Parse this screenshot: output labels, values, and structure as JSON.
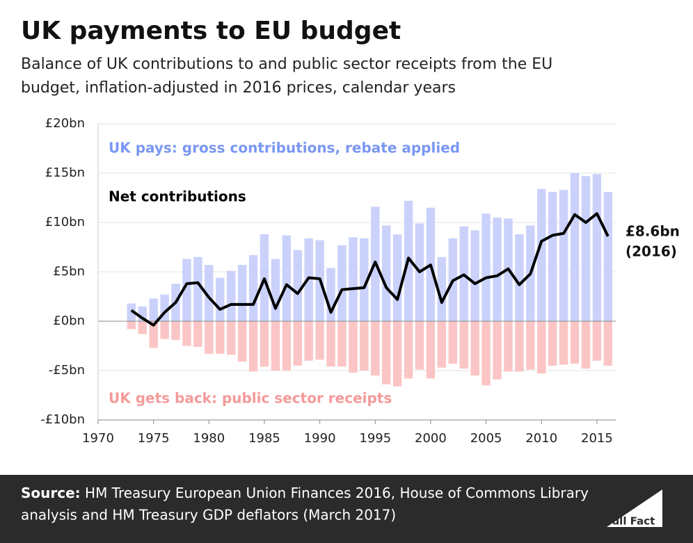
{
  "chart_data": {
    "type": "bar-line",
    "title": "UK payments to EU budget",
    "subtitle": [
      "Balance of UK contributions to and public sector receipts from the EU",
      "budget, inflation-adjusted in 2016 prices, calendar years"
    ],
    "x": [
      1973,
      1974,
      1975,
      1976,
      1977,
      1978,
      1979,
      1980,
      1981,
      1982,
      1983,
      1984,
      1985,
      1986,
      1987,
      1988,
      1989,
      1990,
      1991,
      1992,
      1993,
      1994,
      1995,
      1996,
      1997,
      1998,
      1999,
      2000,
      2001,
      2002,
      2003,
      2004,
      2005,
      2006,
      2007,
      2008,
      2009,
      2010,
      2011,
      2012,
      2013,
      2014,
      2015,
      2016
    ],
    "series": [
      {
        "name": "UK pays: gross contributions, rebate applied",
        "type": "bar",
        "color": "#cad2fb",
        "label_color": "#7a97f2",
        "values": [
          1.8,
          1.5,
          2.3,
          2.7,
          3.8,
          6.3,
          6.5,
          5.7,
          4.4,
          5.1,
          5.7,
          6.7,
          8.8,
          6.3,
          8.7,
          7.2,
          8.4,
          8.2,
          5.4,
          7.7,
          8.5,
          8.4,
          11.6,
          9.7,
          8.8,
          12.2,
          9.9,
          11.5,
          6.5,
          8.4,
          9.6,
          9.2,
          10.9,
          10.5,
          10.4,
          8.8,
          9.7,
          13.4,
          13.1,
          13.3,
          15.0,
          14.7,
          14.9,
          13.1
        ]
      },
      {
        "name": "UK gets back: public sector receipts",
        "type": "bar",
        "color": "#fbc5c5",
        "label_color": "#f49a9a",
        "values": [
          -0.8,
          -1.3,
          -2.7,
          -1.8,
          -1.9,
          -2.5,
          -2.6,
          -3.3,
          -3.3,
          -3.4,
          -4.1,
          -5.1,
          -4.6,
          -5.0,
          -5.0,
          -4.5,
          -4.0,
          -3.9,
          -4.6,
          -4.6,
          -5.2,
          -5.0,
          -5.5,
          -6.4,
          -6.6,
          -5.8,
          -4.9,
          -5.8,
          -4.7,
          -4.3,
          -4.8,
          -5.5,
          -6.5,
          -5.9,
          -5.1,
          -5.1,
          -4.9,
          -5.3,
          -4.5,
          -4.4,
          -4.3,
          -4.8,
          -4.0,
          -4.5
        ]
      },
      {
        "name": "Net contributions",
        "type": "line",
        "color": "#000000",
        "label_color": "#000000",
        "values": [
          1.1,
          0.3,
          -0.4,
          0.9,
          1.9,
          3.8,
          3.9,
          2.4,
          1.2,
          1.7,
          1.7,
          1.7,
          4.3,
          1.3,
          3.7,
          2.8,
          4.4,
          4.3,
          0.9,
          3.2,
          3.3,
          3.4,
          6.0,
          3.4,
          2.2,
          6.4,
          5.0,
          5.7,
          1.9,
          4.1,
          4.7,
          3.8,
          4.4,
          4.6,
          5.3,
          3.7,
          4.8,
          8.1,
          8.7,
          8.9,
          10.8,
          10.0,
          10.9,
          8.6
        ]
      }
    ],
    "end_label": [
      "£8.6bn",
      "(2016)"
    ],
    "xlim": [
      1970,
      2016.7
    ],
    "xticks": [
      1970,
      1975,
      1980,
      1985,
      1990,
      1995,
      2000,
      2005,
      2010,
      2015
    ],
    "ylim": [
      -10,
      20
    ],
    "yticks": [
      {
        "value": -10,
        "label": "-£10bn"
      },
      {
        "value": -5,
        "label": "-£5bn"
      },
      {
        "value": 0,
        "label": "£0bn"
      },
      {
        "value": 5,
        "label": "£5bn"
      },
      {
        "value": 10,
        "label": "£10bn"
      },
      {
        "value": 15,
        "label": "£15bn"
      },
      {
        "value": 20,
        "label": "£20bn"
      }
    ],
    "grid": true
  },
  "footer": {
    "source_label": "Source:",
    "source_lines": [
      "HM Treasury European Union Finances 2016, House of Commons Library",
      "analysis and HM Treasury GDP deflators (March 2017)"
    ],
    "logo": "Full Fact"
  }
}
